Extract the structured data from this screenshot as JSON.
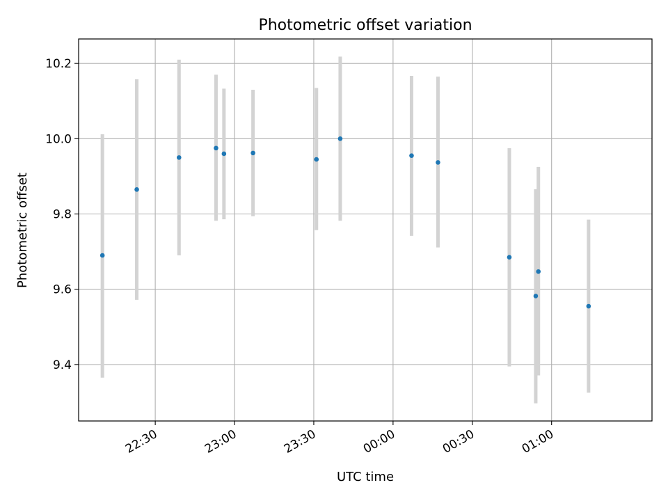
{
  "chart_data": {
    "type": "scatter",
    "title": "Photometric offset variation",
    "xlabel": "UTC time",
    "ylabel": "Photometric offset",
    "x_unit": "UTC time (HH:MM)",
    "xlim": [
      "22:01",
      "01:38"
    ],
    "ylim": [
      9.25,
      10.265
    ],
    "x_ticks": [
      "22:30",
      "23:00",
      "23:30",
      "00:00",
      "00:30",
      "01:00"
    ],
    "y_ticks": [
      9.4,
      9.6,
      9.8,
      10.0,
      10.2
    ],
    "y_tick_labels": [
      "9.4",
      "9.6",
      "9.8",
      "10.0",
      "10.2"
    ],
    "grid": true,
    "point_color": "#1f77b4",
    "errorbar_color": "#d3d3d3",
    "points": [
      {
        "x": "22:10",
        "y": 9.69,
        "y_low": 9.365,
        "y_high": 10.012
      },
      {
        "x": "22:23",
        "y": 9.865,
        "y_low": 9.572,
        "y_high": 10.158
      },
      {
        "x": "22:39",
        "y": 9.95,
        "y_low": 9.69,
        "y_high": 10.21
      },
      {
        "x": "22:53",
        "y": 9.975,
        "y_low": 9.782,
        "y_high": 10.17
      },
      {
        "x": "22:56",
        "y": 9.96,
        "y_low": 9.786,
        "y_high": 10.133
      },
      {
        "x": "23:07",
        "y": 9.962,
        "y_low": 9.794,
        "y_high": 10.13
      },
      {
        "x": "23:31",
        "y": 9.945,
        "y_low": 9.757,
        "y_high": 10.135
      },
      {
        "x": "23:40",
        "y": 10.0,
        "y_low": 9.782,
        "y_high": 10.218
      },
      {
        "x": "00:07",
        "y": 9.955,
        "y_low": 9.742,
        "y_high": 10.167
      },
      {
        "x": "00:17",
        "y": 9.937,
        "y_low": 9.711,
        "y_high": 10.165
      },
      {
        "x": "00:44",
        "y": 9.685,
        "y_low": 9.395,
        "y_high": 9.975
      },
      {
        "x": "00:54",
        "y": 9.582,
        "y_low": 9.297,
        "y_high": 9.866
      },
      {
        "x": "00:55",
        "y": 9.647,
        "y_low": 9.371,
        "y_high": 9.925
      },
      {
        "x": "01:14",
        "y": 9.555,
        "y_low": 9.325,
        "y_high": 9.785
      }
    ]
  }
}
